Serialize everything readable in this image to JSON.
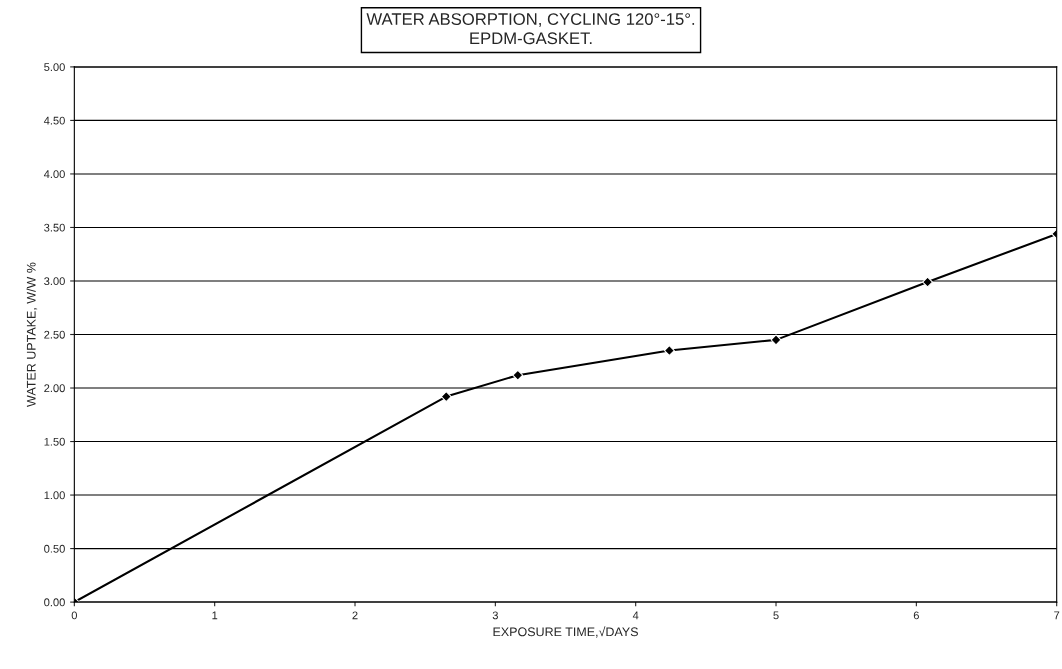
{
  "chart_data": {
    "type": "line",
    "title": "WATER ABSORPTION, CYCLING 120°-15°.\nEPDM-GASKET.",
    "xlabel": "EXPOSURE TIME,√DAYS",
    "ylabel": "WATER UPTAKE, W/W %",
    "x": [
      0,
      2.65,
      3.16,
      4.24,
      5.0,
      6.08,
      7.0
    ],
    "series": [
      {
        "color": "#000000",
        "values": [
          0.0,
          1.92,
          2.12,
          2.35,
          2.45,
          2.99,
          3.44
        ]
      }
    ],
    "xlim": [
      0,
      7
    ],
    "xticks": [
      0,
      1,
      2,
      3,
      4,
      5,
      6,
      7
    ],
    "ylim": [
      0,
      5
    ],
    "yticks": [
      {
        "value": 0,
        "label": "0.00"
      },
      {
        "value": 0.5,
        "label": "0.50"
      },
      {
        "value": 1,
        "label": "1.00"
      },
      {
        "value": 1.5,
        "label": "1.50"
      },
      {
        "value": 2,
        "label": "2.00"
      },
      {
        "value": 2.5,
        "label": "2.50"
      },
      {
        "value": 3,
        "label": "3.00"
      },
      {
        "value": 3.5,
        "label": "3.50"
      },
      {
        "value": 4,
        "label": "4.00"
      },
      {
        "value": 4.5,
        "label": "4.50"
      },
      {
        "value": 5,
        "label": "5.00"
      }
    ],
    "grid": "y",
    "marker": "diamond",
    "line_style": "solid",
    "legend": false
  }
}
